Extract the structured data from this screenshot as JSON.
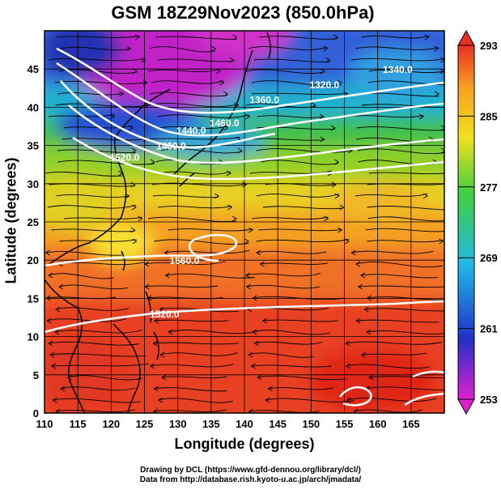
{
  "title": "GSM 18Z29Nov2023 (850.0hPa)",
  "xlabel": "Longitude (degrees)",
  "ylabel": "Latitude  (degrees)",
  "credits": [
    "Drawing by DCL (https://www.gfd-dennou.org/library/dcl/)",
    "Data from http://database.rish.kyoto-u.ac.jp/arch/jmadata/"
  ],
  "map": {
    "lon_range": [
      110,
      170
    ],
    "lat_range": [
      0,
      50
    ],
    "x_ticks": [
      110,
      115,
      120,
      125,
      130,
      135,
      140,
      145,
      150,
      155,
      160,
      165
    ],
    "y_ticks": [
      0,
      5,
      10,
      15,
      20,
      25,
      30,
      35,
      40,
      45
    ],
    "grid": true,
    "colorbar_ticks": [
      253,
      261,
      269,
      277,
      285,
      293
    ],
    "colorbar_range": [
      253,
      293
    ],
    "colormap": [
      "#e020d0",
      "#2030c8",
      "#20b8e8",
      "#40d040",
      "#f0e020",
      "#f8a020",
      "#e83020"
    ],
    "contour_labels": [
      {
        "text": "1320.0",
        "lon": 152,
        "lat": 42.5
      },
      {
        "text": "1340.0",
        "lon": 163,
        "lat": 44.5
      },
      {
        "text": "1360.0",
        "lon": 143,
        "lat": 40.5
      },
      {
        "text": "1440.0",
        "lon": 132,
        "lat": 36.5
      },
      {
        "text": "1460.0",
        "lon": 137,
        "lat": 37.5
      },
      {
        "text": "1480.0",
        "lon": 129,
        "lat": 34.5
      },
      {
        "text": "1520.0",
        "lon": 122,
        "lat": 33
      },
      {
        "text": "1560.0",
        "lon": 131,
        "lat": 19.5
      },
      {
        "text": "1520.0",
        "lon": 128,
        "lat": 12.5
      }
    ]
  }
}
